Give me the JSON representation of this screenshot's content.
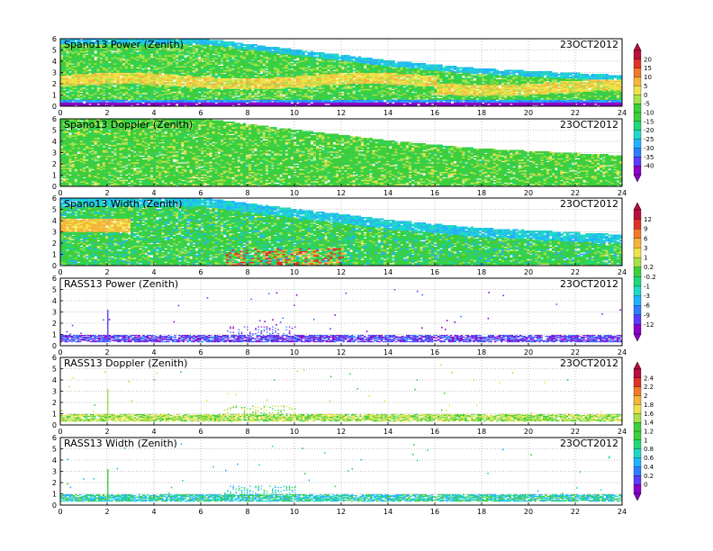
{
  "date_label": "23OCT2012",
  "x_ticks": [
    0,
    2,
    4,
    6,
    8,
    10,
    12,
    14,
    16,
    18,
    20,
    22,
    24
  ],
  "y_ticks": [
    0,
    1,
    2,
    3,
    4,
    5,
    6
  ],
  "colors": {
    "spectrum": [
      "#8b00c8",
      "#5a3cff",
      "#2f7dff",
      "#22b3ff",
      "#20d8c8",
      "#1fd87a",
      "#3ccf3c",
      "#a8e24a",
      "#efe24a",
      "#f5b53a",
      "#f07a2a",
      "#e0302a",
      "#b8103a"
    ]
  },
  "panels": [
    {
      "title": "Spano13 Power (Zenith)",
      "date": "23OCT2012",
      "kind": "spano",
      "field": "power"
    },
    {
      "title": "Spano13 Doppler (Zenith)",
      "date": "23OCT2012",
      "kind": "spano",
      "field": "doppler"
    },
    {
      "title": "Spano13 Width (Zenith)",
      "date": "23OCT2012",
      "kind": "spano",
      "field": "width"
    },
    {
      "title": "RASS13 Power (Zenith)",
      "date": "23OCT2012",
      "kind": "rass",
      "field": "power"
    },
    {
      "title": "RASS13 Doppler (Zenith)",
      "date": "23OCT2012",
      "kind": "rass",
      "field": "doppler"
    },
    {
      "title": "RASS13 Width (Zenith)",
      "date": "23OCT2012",
      "kind": "rass",
      "field": "width"
    }
  ],
  "colorbars": [
    {
      "panel": 0,
      "labels": [
        "20",
        "15",
        "10",
        "5",
        "0",
        "-5",
        "-10",
        "-15",
        "-20",
        "-25",
        "-30",
        "-35",
        "-40"
      ]
    },
    {
      "panel": 2,
      "labels": [
        "12",
        "9",
        "6",
        "3",
        "1",
        "0.2",
        "-0.2",
        "-1",
        "-3",
        "-6",
        "-9",
        "-12"
      ]
    },
    {
      "panel": 4,
      "labels": [
        "2.4",
        "2.2",
        "2",
        "1.8",
        "1.6",
        "1.4",
        "1.2",
        "1",
        "0.8",
        "0.6",
        "0.4",
        "0.2",
        "0"
      ]
    }
  ],
  "chart_data": [
    {
      "type": "heatmap",
      "title": "Spano13 Power (Zenith)",
      "xlim": [
        0,
        24
      ],
      "ylim": [
        0,
        6
      ],
      "x_ticks": [
        0,
        2,
        4,
        6,
        8,
        10,
        12,
        14,
        16,
        18,
        20,
        22,
        24
      ],
      "y_ticks": [
        0,
        1,
        2,
        3,
        4,
        5,
        6
      ],
      "annotations": [
        "23OCT2012"
      ],
      "colorbar_labels": [
        "20",
        "15",
        "10",
        "5",
        "0",
        "-5",
        "-10",
        "-15",
        "-20",
        "-25",
        "-30",
        "-35",
        "-40"
      ],
      "grid": true,
      "echo_top_height": [
        [
          0,
          6.0
        ],
        [
          6,
          6.0
        ],
        [
          10,
          5.0
        ],
        [
          14,
          4.0
        ],
        [
          18,
          3.3
        ],
        [
          24,
          2.7
        ]
      ]
    },
    {
      "type": "heatmap",
      "title": "Spano13 Doppler (Zenith)",
      "xlim": [
        0,
        24
      ],
      "ylim": [
        0,
        6
      ],
      "x_ticks": [
        0,
        2,
        4,
        6,
        8,
        10,
        12,
        14,
        16,
        18,
        20,
        22,
        24
      ],
      "y_ticks": [
        0,
        1,
        2,
        3,
        4,
        5,
        6
      ],
      "annotations": [
        "23OCT2012"
      ],
      "grid": true
    },
    {
      "type": "heatmap",
      "title": "Spano13 Width (Zenith)",
      "xlim": [
        0,
        24
      ],
      "ylim": [
        0,
        6
      ],
      "x_ticks": [
        0,
        2,
        4,
        6,
        8,
        10,
        12,
        14,
        16,
        18,
        20,
        22,
        24
      ],
      "y_ticks": [
        0,
        1,
        2,
        3,
        4,
        5,
        6
      ],
      "annotations": [
        "23OCT2012"
      ],
      "colorbar_labels": [
        "12",
        "9",
        "6",
        "3",
        "1",
        "0.2",
        "-0.2",
        "-1",
        "-3",
        "-6",
        "-9",
        "-12"
      ],
      "grid": true
    },
    {
      "type": "scatter",
      "title": "RASS13 Power (Zenith)",
      "xlim": [
        0,
        24
      ],
      "ylim": [
        0,
        6
      ],
      "x_ticks": [
        0,
        2,
        4,
        6,
        8,
        10,
        12,
        14,
        16,
        18,
        20,
        22,
        24
      ],
      "y_ticks": [
        0,
        1,
        2,
        3,
        4,
        5,
        6
      ],
      "annotations": [
        "23OCT2012"
      ],
      "grid": true,
      "dense_band_height": [
        0.4,
        1.0
      ]
    },
    {
      "type": "scatter",
      "title": "RASS13 Doppler (Zenith)",
      "xlim": [
        0,
        24
      ],
      "ylim": [
        0,
        6
      ],
      "x_ticks": [
        0,
        2,
        4,
        6,
        8,
        10,
        12,
        14,
        16,
        18,
        20,
        22,
        24
      ],
      "y_ticks": [
        0,
        1,
        2,
        3,
        4,
        5,
        6
      ],
      "annotations": [
        "23OCT2012"
      ],
      "colorbar_labels": [
        "2.4",
        "2.2",
        "2",
        "1.8",
        "1.6",
        "1.4",
        "1.2",
        "1",
        "0.8",
        "0.6",
        "0.4",
        "0.2",
        "0"
      ],
      "grid": true,
      "dense_band_height": [
        0.4,
        1.0
      ]
    },
    {
      "type": "scatter",
      "title": "RASS13 Width (Zenith)",
      "xlim": [
        0,
        24
      ],
      "ylim": [
        0,
        6
      ],
      "x_ticks": [
        0,
        2,
        4,
        6,
        8,
        10,
        12,
        14,
        16,
        18,
        20,
        22,
        24
      ],
      "y_ticks": [
        0,
        1,
        2,
        3,
        4,
        5,
        6
      ],
      "annotations": [
        "23OCT2012"
      ],
      "grid": true,
      "dense_band_height": [
        0.4,
        1.0
      ]
    }
  ]
}
